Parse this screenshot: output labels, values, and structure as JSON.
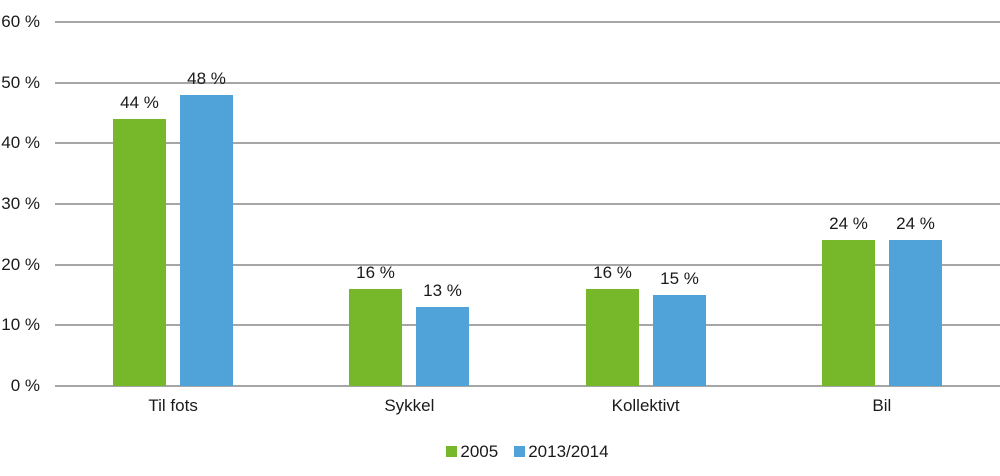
{
  "chart_data": {
    "type": "bar",
    "title": "",
    "categories": [
      "Til fots",
      "Sykkel",
      "Kollektivt",
      "Bil"
    ],
    "series": [
      {
        "name": "2005",
        "color": "#76b82a",
        "values": [
          44,
          16,
          16,
          24
        ]
      },
      {
        "name": "2013/2014",
        "color": "#4fa3d8",
        "values": [
          48,
          13,
          15,
          24
        ]
      }
    ],
    "value_suffix": " %",
    "yticks": [
      0,
      10,
      20,
      30,
      40,
      50,
      60
    ],
    "ytick_suffix": " %",
    "ylim": [
      0,
      60
    ],
    "grid": true,
    "gridline_color": "#a6a6a6",
    "text_color": "#1a1a1a",
    "legend_position": "bottom",
    "xlabel": "",
    "ylabel": ""
  }
}
